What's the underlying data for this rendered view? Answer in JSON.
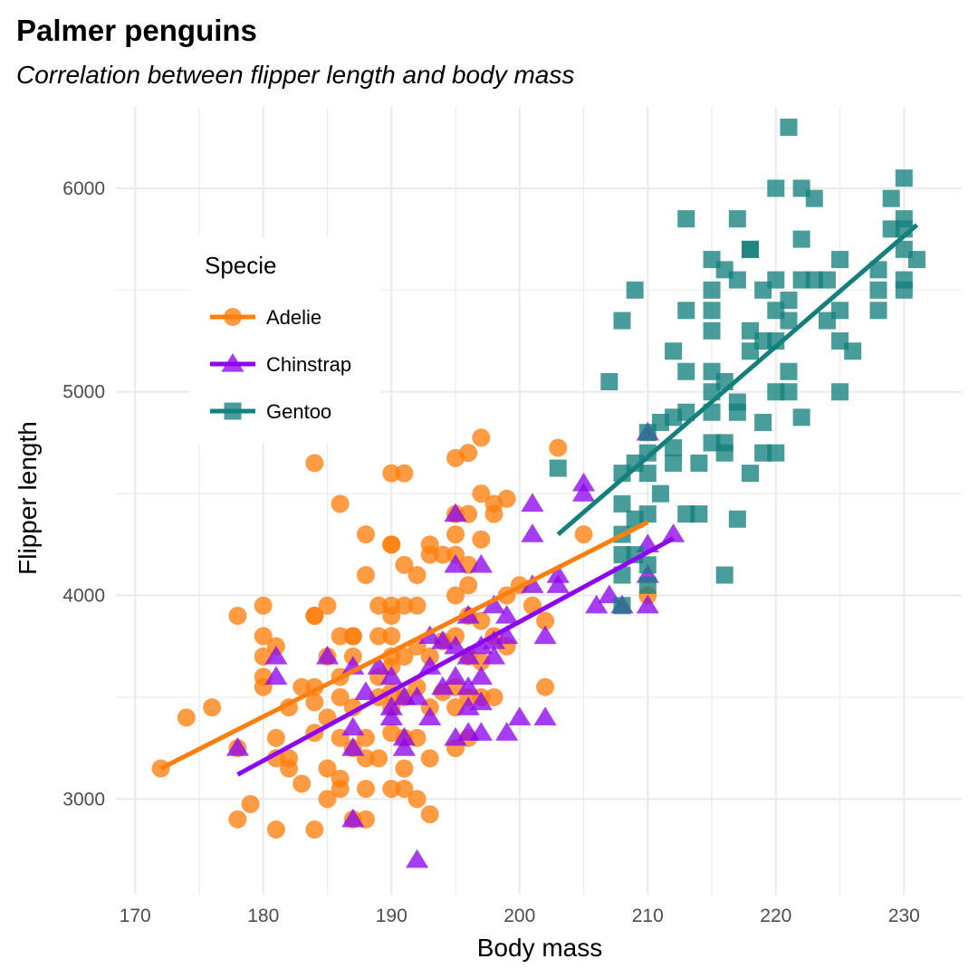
{
  "colors": {
    "Adelie": "#ff7f0e",
    "Chinstrap": "#8e06ee",
    "Gentoo": "#14807c"
  },
  "chart_data": {
    "type": "scatter",
    "title": "Palmer penguins",
    "subtitle": "Correlation between flipper length and body mass",
    "xlabel": "Body mass",
    "ylabel": "Flipper length",
    "xlim": [
      168.5,
      234.5
    ],
    "ylim": [
      2530,
      6400
    ],
    "x_ticks": [
      170,
      180,
      190,
      200,
      210,
      220,
      230
    ],
    "y_ticks": [
      3000,
      4000,
      5000,
      6000
    ],
    "grid": true,
    "legend": {
      "title": "Specie",
      "position": "top-left inside"
    },
    "series": [
      {
        "name": "Adelie",
        "marker": "circle",
        "trend": {
          "x": [
            172,
            210
          ],
          "y": [
            3150,
            4360
          ]
        },
        "points": [
          [
            172,
            3150
          ],
          [
            174,
            3400
          ],
          [
            176,
            3450
          ],
          [
            178,
            3900
          ],
          [
            178,
            2900
          ],
          [
            178,
            3250
          ],
          [
            179,
            2975
          ],
          [
            180,
            3950
          ],
          [
            180,
            3800
          ],
          [
            180,
            3700
          ],
          [
            180,
            3600
          ],
          [
            180,
            3550
          ],
          [
            181,
            3750
          ],
          [
            181,
            3300
          ],
          [
            181,
            3200
          ],
          [
            181,
            2850
          ],
          [
            182,
            3450
          ],
          [
            182,
            3200
          ],
          [
            182,
            3150
          ],
          [
            183,
            3550
          ],
          [
            183,
            3075
          ],
          [
            184,
            4650
          ],
          [
            184,
            3900
          ],
          [
            184,
            3900
          ],
          [
            184,
            3550
          ],
          [
            184,
            3475
          ],
          [
            184,
            3325
          ],
          [
            184,
            2850
          ],
          [
            185,
            3950
          ],
          [
            185,
            3700
          ],
          [
            185,
            3400
          ],
          [
            185,
            3150
          ],
          [
            185,
            3000
          ],
          [
            186,
            4450
          ],
          [
            186,
            3800
          ],
          [
            186,
            3600
          ],
          [
            186,
            3500
          ],
          [
            186,
            3300
          ],
          [
            186,
            3100
          ],
          [
            186,
            3050
          ],
          [
            187,
            3800
          ],
          [
            187,
            3800
          ],
          [
            187,
            3700
          ],
          [
            187,
            3450
          ],
          [
            187,
            3250
          ],
          [
            187,
            2900
          ],
          [
            188,
            4300
          ],
          [
            188,
            4100
          ],
          [
            188,
            3300
          ],
          [
            188,
            3200
          ],
          [
            188,
            3050
          ],
          [
            188,
            2900
          ],
          [
            189,
            3950
          ],
          [
            189,
            3800
          ],
          [
            189,
            3600
          ],
          [
            189,
            3500
          ],
          [
            189,
            3200
          ],
          [
            190,
            4600
          ],
          [
            190,
            4250
          ],
          [
            190,
            4250
          ],
          [
            190,
            3950
          ],
          [
            190,
            3900
          ],
          [
            190,
            3800
          ],
          [
            190,
            3700
          ],
          [
            190,
            3650
          ],
          [
            190,
            3525
          ],
          [
            190,
            3450
          ],
          [
            190,
            3325
          ],
          [
            190,
            3050
          ],
          [
            191,
            4600
          ],
          [
            191,
            4150
          ],
          [
            191,
            3950
          ],
          [
            191,
            3700
          ],
          [
            191,
            3500
          ],
          [
            191,
            3300
          ],
          [
            191,
            3150
          ],
          [
            191,
            3050
          ],
          [
            192,
            4100
          ],
          [
            192,
            3950
          ],
          [
            192,
            3750
          ],
          [
            192,
            3550
          ],
          [
            192,
            3300
          ],
          [
            192,
            3000
          ],
          [
            193,
            4250
          ],
          [
            193,
            4200
          ],
          [
            193,
            3700
          ],
          [
            193,
            3450
          ],
          [
            193,
            3200
          ],
          [
            193,
            2925
          ],
          [
            194,
            4200
          ],
          [
            194,
            3775
          ],
          [
            194,
            3525
          ],
          [
            195,
            4675
          ],
          [
            195,
            4400
          ],
          [
            195,
            4300
          ],
          [
            195,
            4200
          ],
          [
            195,
            4000
          ],
          [
            195,
            3800
          ],
          [
            195,
            3550
          ],
          [
            195,
            3450
          ],
          [
            195,
            3250
          ],
          [
            196,
            4700
          ],
          [
            196,
            4400
          ],
          [
            196,
            4150
          ],
          [
            196,
            4050
          ],
          [
            196,
            3900
          ],
          [
            196,
            3700
          ],
          [
            196,
            3500
          ],
          [
            196,
            3300
          ],
          [
            197,
            4775
          ],
          [
            197,
            4500
          ],
          [
            197,
            4275
          ],
          [
            197,
            3875
          ],
          [
            197,
            3675
          ],
          [
            197,
            3500
          ],
          [
            198,
            4450
          ],
          [
            198,
            4400
          ],
          [
            198,
            3800
          ],
          [
            198,
            3500
          ],
          [
            199,
            4475
          ],
          [
            199,
            4000
          ],
          [
            199,
            3750
          ],
          [
            200,
            4050
          ],
          [
            201,
            3950
          ],
          [
            202,
            3875
          ],
          [
            202,
            3550
          ],
          [
            203,
            4725
          ],
          [
            205,
            4300
          ],
          [
            210,
            4000
          ]
        ]
      },
      {
        "name": "Chinstrap",
        "marker": "triangle",
        "trend": {
          "x": [
            178,
            212
          ],
          "y": [
            3120,
            4280
          ]
        },
        "points": [
          [
            178,
            3250
          ],
          [
            181,
            3700
          ],
          [
            181,
            3600
          ],
          [
            185,
            3700
          ],
          [
            187,
            3650
          ],
          [
            187,
            3350
          ],
          [
            187,
            3250
          ],
          [
            187,
            2900
          ],
          [
            188,
            3525
          ],
          [
            189,
            3650
          ],
          [
            190,
            3600
          ],
          [
            190,
            3450
          ],
          [
            190,
            3400
          ],
          [
            191,
            3500
          ],
          [
            191,
            3300
          ],
          [
            191,
            3250
          ],
          [
            192,
            3500
          ],
          [
            192,
            2700
          ],
          [
            193,
            3800
          ],
          [
            193,
            3650
          ],
          [
            193,
            3400
          ],
          [
            194,
            3775
          ],
          [
            194,
            3550
          ],
          [
            195,
            4400
          ],
          [
            195,
            4150
          ],
          [
            195,
            3750
          ],
          [
            195,
            3600
          ],
          [
            195,
            3300
          ],
          [
            196,
            3900
          ],
          [
            196,
            3700
          ],
          [
            196,
            3550
          ],
          [
            196,
            3450
          ],
          [
            196,
            3325
          ],
          [
            197,
            4150
          ],
          [
            197,
            3750
          ],
          [
            197,
            3600
          ],
          [
            197,
            3475
          ],
          [
            197,
            3325
          ],
          [
            198,
            3950
          ],
          [
            198,
            3775
          ],
          [
            198,
            3700
          ],
          [
            199,
            3900
          ],
          [
            199,
            3800
          ],
          [
            199,
            3325
          ],
          [
            200,
            3400
          ],
          [
            201,
            4450
          ],
          [
            201,
            4300
          ],
          [
            201,
            4050
          ],
          [
            202,
            3800
          ],
          [
            202,
            3400
          ],
          [
            203,
            4100
          ],
          [
            203,
            4050
          ],
          [
            205,
            4550
          ],
          [
            205,
            4500
          ],
          [
            206,
            3950
          ],
          [
            207,
            4000
          ],
          [
            208,
            3950
          ],
          [
            210,
            4800
          ],
          [
            210,
            4250
          ],
          [
            210,
            4100
          ],
          [
            210,
            3950
          ],
          [
            212,
            4300
          ]
        ]
      },
      {
        "name": "Gentoo",
        "marker": "square",
        "trend": {
          "x": [
            203,
            231
          ],
          "y": [
            4300,
            5820
          ]
        },
        "points": [
          [
            203,
            4625
          ],
          [
            207,
            5050
          ],
          [
            208,
            5350
          ],
          [
            208,
            4600
          ],
          [
            208,
            4450
          ],
          [
            208,
            4300
          ],
          [
            208,
            4200
          ],
          [
            208,
            4100
          ],
          [
            208,
            3950
          ],
          [
            209,
            5500
          ],
          [
            209,
            4650
          ],
          [
            209,
            4375
          ],
          [
            209,
            4200
          ],
          [
            210,
            4800
          ],
          [
            210,
            4700
          ],
          [
            210,
            4600
          ],
          [
            210,
            4400
          ],
          [
            210,
            4150
          ],
          [
            210,
            4050
          ],
          [
            211,
            4850
          ],
          [
            211,
            4500
          ],
          [
            212,
            5200
          ],
          [
            212,
            4875
          ],
          [
            212,
            4725
          ],
          [
            212,
            4650
          ],
          [
            213,
            5850
          ],
          [
            213,
            5400
          ],
          [
            213,
            5100
          ],
          [
            213,
            4900
          ],
          [
            213,
            4400
          ],
          [
            214,
            4650
          ],
          [
            214,
            4400
          ],
          [
            215,
            5650
          ],
          [
            215,
            5500
          ],
          [
            215,
            5400
          ],
          [
            215,
            5300
          ],
          [
            215,
            5100
          ],
          [
            215,
            5000
          ],
          [
            215,
            4900
          ],
          [
            215,
            4750
          ],
          [
            216,
            5600
          ],
          [
            216,
            5050
          ],
          [
            216,
            4750
          ],
          [
            216,
            4700
          ],
          [
            216,
            4100
          ],
          [
            217,
            5850
          ],
          [
            217,
            5550
          ],
          [
            217,
            4950
          ],
          [
            217,
            4900
          ],
          [
            217,
            4375
          ],
          [
            218,
            5700
          ],
          [
            218,
            5700
          ],
          [
            218,
            5300
          ],
          [
            218,
            5200
          ],
          [
            218,
            4600
          ],
          [
            219,
            5500
          ],
          [
            219,
            5250
          ],
          [
            219,
            4850
          ],
          [
            219,
            4700
          ],
          [
            220,
            6000
          ],
          [
            220,
            5550
          ],
          [
            220,
            5400
          ],
          [
            220,
            5250
          ],
          [
            220,
            5000
          ],
          [
            220,
            4700
          ],
          [
            221,
            6300
          ],
          [
            221,
            5450
          ],
          [
            221,
            5350
          ],
          [
            221,
            5100
          ],
          [
            221,
            5000
          ],
          [
            222,
            6000
          ],
          [
            222,
            5750
          ],
          [
            222,
            5550
          ],
          [
            222,
            4875
          ],
          [
            223,
            5950
          ],
          [
            223,
            5550
          ],
          [
            224,
            5550
          ],
          [
            224,
            5350
          ],
          [
            225,
            5650
          ],
          [
            225,
            5400
          ],
          [
            225,
            5250
          ],
          [
            225,
            5000
          ],
          [
            226,
            5200
          ],
          [
            228,
            5600
          ],
          [
            228,
            5500
          ],
          [
            228,
            5400
          ],
          [
            229,
            5950
          ],
          [
            229,
            5800
          ],
          [
            230,
            6050
          ],
          [
            230,
            5850
          ],
          [
            230,
            5800
          ],
          [
            230,
            5700
          ],
          [
            230,
            5550
          ],
          [
            230,
            5500
          ],
          [
            231,
            5650
          ]
        ]
      }
    ]
  }
}
